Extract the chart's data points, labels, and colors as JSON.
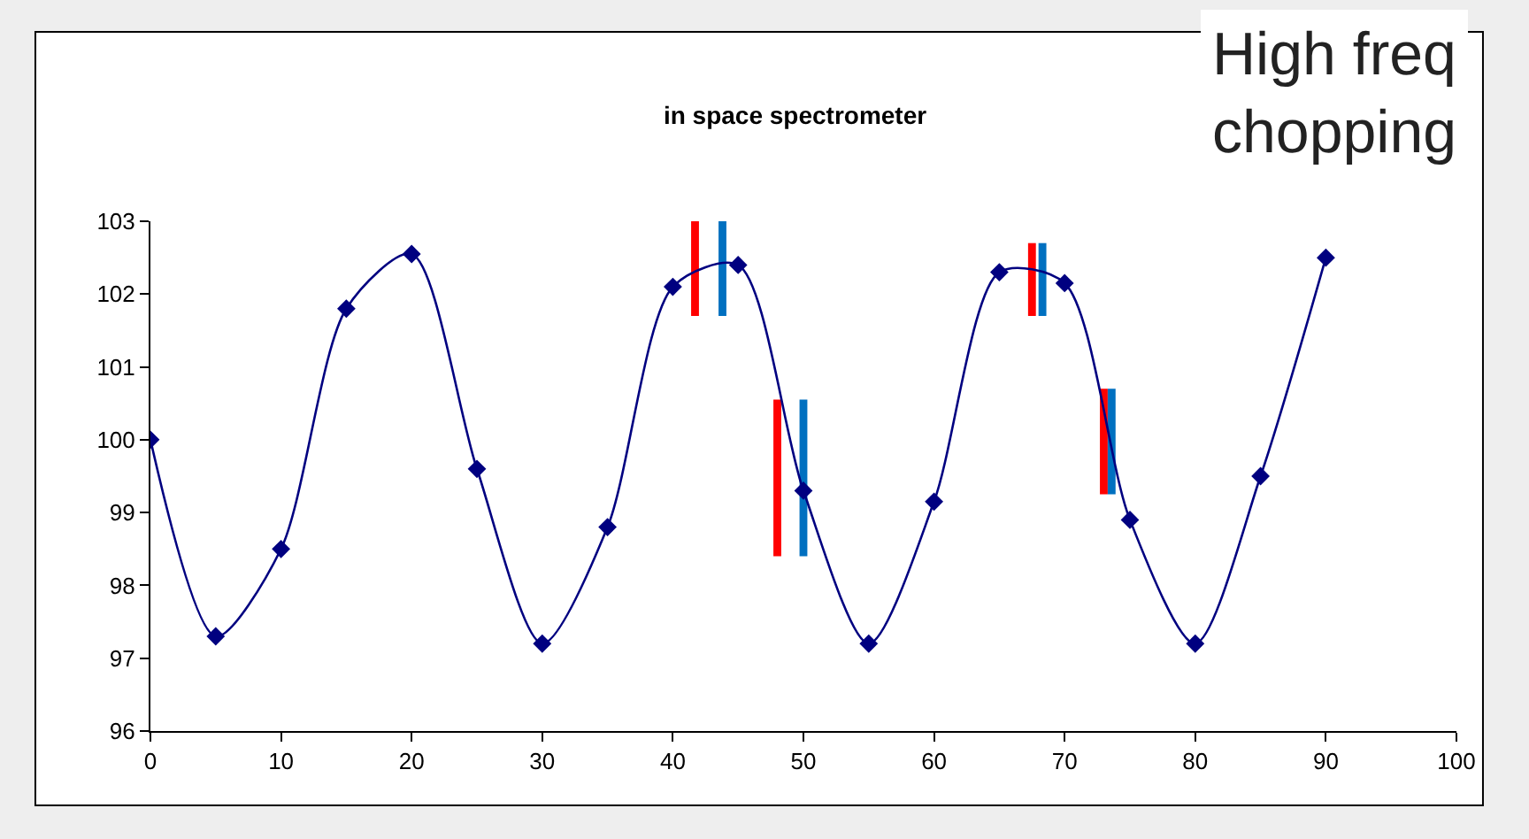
{
  "chart_data": {
    "type": "line",
    "title": "in space spectrometer",
    "annotations": [
      "High freq\nchopping"
    ],
    "xlim": [
      0,
      100
    ],
    "xticks": [
      0,
      10,
      20,
      30,
      40,
      50,
      60,
      70,
      80,
      90,
      100
    ],
    "ylim": [
      96,
      103
    ],
    "yticks": [
      96,
      97,
      98,
      99,
      100,
      101,
      102,
      103
    ],
    "grid": false,
    "marker": "diamond",
    "line_style": "solid",
    "series": [
      {
        "color": "#000080",
        "x": [
          0,
          5,
          10,
          15,
          20,
          25,
          30,
          35,
          40,
          45,
          50,
          55,
          60,
          65,
          70,
          75,
          80,
          85,
          90
        ],
        "values": [
          100,
          97.3,
          98.5,
          101.8,
          102.55,
          99.6,
          97.2,
          98.8,
          102.1,
          102.4,
          99.3,
          97.2,
          99.15,
          102.3,
          102.15,
          98.9,
          97.2,
          99.5,
          102.5
        ]
      },
      {
        "type": "bar",
        "color": "#ff0000",
        "x": [
          41.7,
          48,
          67.5,
          73
        ],
        "base": [
          101.7,
          98.4,
          101.7,
          99.25
        ],
        "values": [
          1.45,
          2.15,
          1,
          1.45
        ]
      },
      {
        "type": "bar",
        "color": "#0070c0",
        "x": [
          43.8,
          50,
          68.3,
          73.6
        ],
        "base": [
          101.7,
          98.4,
          101.7,
          99.25
        ],
        "values": [
          1.45,
          2.15,
          1,
          1.45
        ]
      }
    ]
  }
}
